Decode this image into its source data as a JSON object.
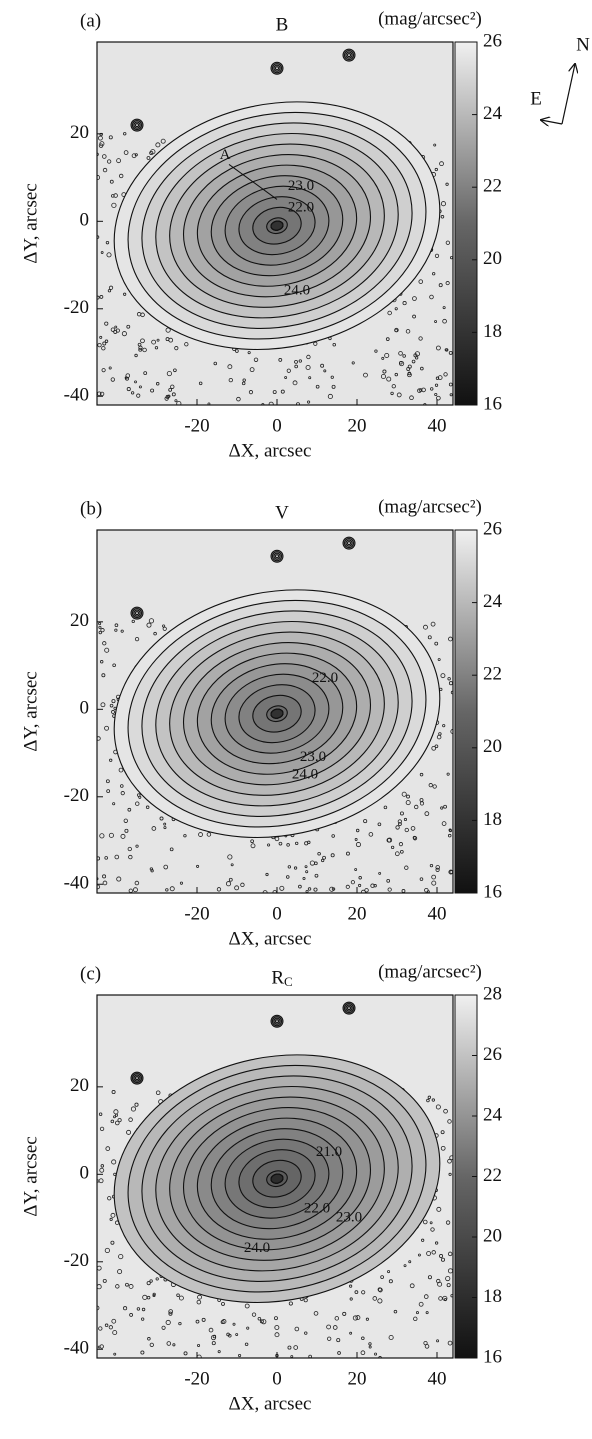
{
  "compass": {
    "north": "N",
    "east": "E"
  },
  "chart_data": [
    {
      "type": "image",
      "panel_label": "(a)",
      "title": "B",
      "colorbar_label": "(mag/arcsec²)",
      "xlabel": "ΔX, arcsec",
      "ylabel": "ΔY, arcsec",
      "xlim": [
        -45,
        44
      ],
      "ylim": [
        -42,
        41
      ],
      "xticks": [
        -20,
        0,
        20,
        40
      ],
      "yticks": [
        -40,
        -20,
        0,
        20
      ],
      "colorbar_lim": [
        16,
        26
      ],
      "colorbar_ticks": [
        16,
        18,
        20,
        22,
        24,
        26
      ],
      "contour_levels": [
        {
          "value": 23,
          "label": "23.0"
        },
        {
          "value": 22,
          "label": "22.0"
        },
        {
          "value": 24,
          "label": "24.0"
        }
      ],
      "annotations": [
        "A"
      ]
    },
    {
      "type": "image",
      "panel_label": "(b)",
      "title": "V",
      "colorbar_label": "(mag/arcsec²)",
      "xlabel": "ΔX, arcsec",
      "ylabel": "ΔY, arcsec",
      "xlim": [
        -45,
        44
      ],
      "ylim": [
        -42,
        41
      ],
      "xticks": [
        -20,
        0,
        20,
        40
      ],
      "yticks": [
        -40,
        -20,
        0,
        20
      ],
      "colorbar_lim": [
        16,
        26
      ],
      "colorbar_ticks": [
        16,
        18,
        20,
        22,
        24,
        26
      ],
      "contour_levels": [
        {
          "value": 22,
          "label": "22.0"
        },
        {
          "value": 23,
          "label": "23.0"
        },
        {
          "value": 24,
          "label": "24.0"
        }
      ]
    },
    {
      "type": "image",
      "panel_label": "(c)",
      "title": "R",
      "title_subscript": "C",
      "colorbar_label": "(mag/arcsec²)",
      "xlabel": "ΔX, arcsec",
      "ylabel": "ΔY, arcsec",
      "xlim": [
        -45,
        44
      ],
      "ylim": [
        -42,
        41
      ],
      "xticks": [
        -20,
        0,
        20,
        40
      ],
      "yticks": [
        -40,
        -20,
        0,
        20
      ],
      "colorbar_lim": [
        16,
        28
      ],
      "colorbar_ticks": [
        16,
        18,
        20,
        22,
        24,
        26,
        28
      ],
      "contour_levels": [
        {
          "value": 21,
          "label": "21.0"
        },
        {
          "value": 22,
          "label": "22.0"
        },
        {
          "value": 23,
          "label": "23.0"
        },
        {
          "value": 24,
          "label": "24.0"
        }
      ]
    }
  ]
}
